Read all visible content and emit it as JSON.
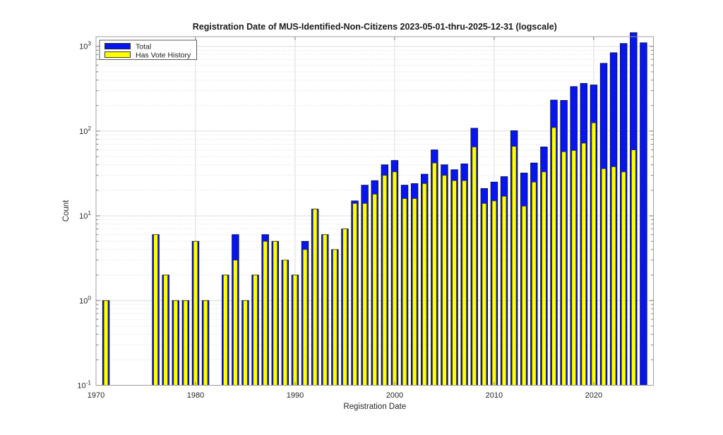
{
  "chart_data": {
    "type": "bar",
    "title": "Registration Date of MUS-Identified-Non-Citizens 2023-05-01-thru-2025-12-31 (logscale)",
    "xlabel": "Registration Date",
    "ylabel": "Count",
    "yscale": "log",
    "xlim": [
      1970,
      2026
    ],
    "ylim": [
      0.1,
      1300
    ],
    "x_tick_years": [
      1970,
      1980,
      1990,
      2000,
      2010,
      2020
    ],
    "y_tick_exponents": [
      -1,
      0,
      1,
      2,
      3
    ],
    "grid": true,
    "legend_position": "top-left",
    "series": [
      {
        "name": "Total",
        "color": "#0816EE"
      },
      {
        "name": "Has Vote History",
        "color": "#FFFF00"
      }
    ],
    "points": [
      {
        "year": 1971,
        "total": 1,
        "has_vote_history": 1
      },
      {
        "year": 1976,
        "total": 6,
        "has_vote_history": 6
      },
      {
        "year": 1977,
        "total": 2,
        "has_vote_history": 2
      },
      {
        "year": 1978,
        "total": 1,
        "has_vote_history": 1
      },
      {
        "year": 1979,
        "total": 1,
        "has_vote_history": 1
      },
      {
        "year": 1980,
        "total": 5,
        "has_vote_history": 5
      },
      {
        "year": 1981,
        "total": 1,
        "has_vote_history": 1
      },
      {
        "year": 1983,
        "total": 2,
        "has_vote_history": 2
      },
      {
        "year": 1984,
        "total": 6,
        "has_vote_history": 3
      },
      {
        "year": 1985,
        "total": 1,
        "has_vote_history": 1
      },
      {
        "year": 1986,
        "total": 2,
        "has_vote_history": 2
      },
      {
        "year": 1987,
        "total": 6,
        "has_vote_history": 5
      },
      {
        "year": 1988,
        "total": 5,
        "has_vote_history": 5
      },
      {
        "year": 1989,
        "total": 3,
        "has_vote_history": 3
      },
      {
        "year": 1990,
        "total": 2,
        "has_vote_history": 2
      },
      {
        "year": 1991,
        "total": 5,
        "has_vote_history": 4
      },
      {
        "year": 1992,
        "total": 12,
        "has_vote_history": 12
      },
      {
        "year": 1993,
        "total": 6,
        "has_vote_history": 6
      },
      {
        "year": 1994,
        "total": 4,
        "has_vote_history": 4
      },
      {
        "year": 1995,
        "total": 7,
        "has_vote_history": 7
      },
      {
        "year": 1996,
        "total": 15,
        "has_vote_history": 14
      },
      {
        "year": 1997,
        "total": 23,
        "has_vote_history": 14
      },
      {
        "year": 1998,
        "total": 26,
        "has_vote_history": 18
      },
      {
        "year": 1999,
        "total": 40,
        "has_vote_history": 30
      },
      {
        "year": 2000,
        "total": 45,
        "has_vote_history": 33
      },
      {
        "year": 2001,
        "total": 23,
        "has_vote_history": 16
      },
      {
        "year": 2002,
        "total": 24,
        "has_vote_history": 16
      },
      {
        "year": 2003,
        "total": 31,
        "has_vote_history": 24
      },
      {
        "year": 2004,
        "total": 60,
        "has_vote_history": 42
      },
      {
        "year": 2005,
        "total": 40,
        "has_vote_history": 30
      },
      {
        "year": 2006,
        "total": 35,
        "has_vote_history": 26
      },
      {
        "year": 2007,
        "total": 41,
        "has_vote_history": 26
      },
      {
        "year": 2008,
        "total": 108,
        "has_vote_history": 65
      },
      {
        "year": 2009,
        "total": 21,
        "has_vote_history": 14
      },
      {
        "year": 2010,
        "total": 25,
        "has_vote_history": 15
      },
      {
        "year": 2011,
        "total": 29,
        "has_vote_history": 17
      },
      {
        "year": 2012,
        "total": 101,
        "has_vote_history": 66
      },
      {
        "year": 2013,
        "total": 32,
        "has_vote_history": 13
      },
      {
        "year": 2014,
        "total": 42,
        "has_vote_history": 25
      },
      {
        "year": 2015,
        "total": 65,
        "has_vote_history": 33
      },
      {
        "year": 2016,
        "total": 232,
        "has_vote_history": 110
      },
      {
        "year": 2017,
        "total": 230,
        "has_vote_history": 57
      },
      {
        "year": 2018,
        "total": 335,
        "has_vote_history": 59
      },
      {
        "year": 2019,
        "total": 365,
        "has_vote_history": 72
      },
      {
        "year": 2020,
        "total": 350,
        "has_vote_history": 125
      },
      {
        "year": 2021,
        "total": 630,
        "has_vote_history": 36
      },
      {
        "year": 2022,
        "total": 840,
        "has_vote_history": 38
      },
      {
        "year": 2023,
        "total": 1080,
        "has_vote_history": 33
      },
      {
        "year": 2024,
        "total": 1450,
        "has_vote_history": 60
      },
      {
        "year": 2025,
        "total": 1100,
        "has_vote_history": 0
      }
    ]
  }
}
